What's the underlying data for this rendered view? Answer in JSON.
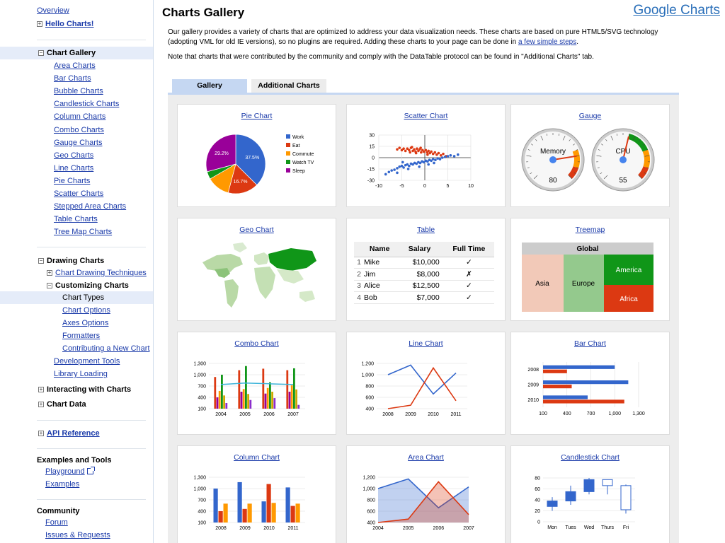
{
  "brand": "Google Charts",
  "page_title": "Charts Gallery",
  "intro": {
    "p1a": "Our gallery provides a variety of charts that are optimized to address your data visualization needs. These charts are based on pure HTML5/SVG technology",
    "p1b": "(adopting VML for old IE versions), so no plugins are required. Adding these charts to your page can be done in ",
    "p1_link": "a few simple steps",
    "p1_end": ".",
    "p2": "Note that charts that were contributed by the community and comply with the DataTable protocol can be found in \"Additional Charts\" tab."
  },
  "tabs": {
    "gallery": "Gallery",
    "additional": "Additional Charts"
  },
  "sidebar": {
    "overview": "Overview",
    "hello": "Hello Charts!",
    "chart_gallery": "Chart Gallery",
    "gallery_items": [
      "Area Charts",
      "Bar Charts",
      "Bubble Charts",
      "Candlestick Charts",
      "Column Charts",
      "Combo Charts",
      "Gauge Charts",
      "Geo Charts",
      "Line Charts",
      "Pie Charts",
      "Scatter Charts",
      "Stepped Area Charts",
      "Table Charts",
      "Tree Map Charts"
    ],
    "drawing_charts": "Drawing Charts",
    "chart_drawing_techniques": "Chart Drawing Techniques",
    "customizing_charts": "Customizing Charts",
    "customizing_items": [
      "Chart Types",
      "Chart Options",
      "Axes Options",
      "Formatters",
      "Contributing a New Chart"
    ],
    "development_tools": "Development Tools",
    "library_loading": "Library Loading",
    "interacting": "Interacting with Charts",
    "chart_data": "Chart Data",
    "api_reference": "API Reference",
    "examples_tools": "Examples and Tools",
    "playground": "Playground",
    "examples": "Examples",
    "community": "Community",
    "forum": "Forum",
    "issues": "Issues & Requests"
  },
  "cards": {
    "pie": "Pie Chart",
    "scatter": "Scatter Chart",
    "gauge": "Gauge",
    "geo": "Geo Chart",
    "table": "Table",
    "treemap": "Treemap",
    "combo": "Combo Chart",
    "line": "Line Chart",
    "bar": "Bar Chart",
    "column": "Column Chart",
    "area": "Area Chart",
    "candlestick": "Candlestick Chart"
  },
  "colors": {
    "blue": "#3366cc",
    "red": "#dc3912",
    "orange": "#ff9900",
    "green": "#109618",
    "purple": "#990099"
  },
  "chart_data": [
    {
      "type": "pie",
      "title": "Pie Chart",
      "categories": [
        "Work",
        "Eat",
        "Commute",
        "Watch TV",
        "Sleep"
      ],
      "values": [
        37.5,
        16.7,
        12.5,
        4.2,
        29.2
      ],
      "labels": [
        "37.5%",
        "16.7%",
        "",
        "",
        "29.2%"
      ]
    },
    {
      "type": "scatter",
      "title": "Scatter Chart",
      "x_ticks": [
        "-10",
        "-5",
        "0",
        "5",
        "10"
      ],
      "y_ticks": [
        "30",
        "15",
        "0",
        "-15",
        "-30"
      ],
      "xlim": [
        -10,
        10
      ],
      "ylim": [
        -30,
        30
      ],
      "series": [
        {
          "color": "red",
          "points": [
            [
              -6,
              11
            ],
            [
              -5.5,
              13
            ],
            [
              -5,
              10
            ],
            [
              -4.6,
              12
            ],
            [
              -4.2,
              9
            ],
            [
              -3.8,
              12
            ],
            [
              -3.4,
              10
            ],
            [
              -3,
              13
            ],
            [
              -2.6,
              9
            ],
            [
              -2.3,
              11
            ],
            [
              -2,
              8
            ],
            [
              -1.7,
              12
            ],
            [
              -1.4,
              9
            ],
            [
              -1.1,
              11
            ],
            [
              -0.8,
              7
            ],
            [
              -0.5,
              10
            ],
            [
              -0.2,
              8
            ],
            [
              0.2,
              10
            ],
            [
              0.5,
              7
            ],
            [
              0.8,
              9
            ],
            [
              1.1,
              6
            ],
            [
              1.4,
              8
            ],
            [
              1.8,
              5
            ],
            [
              2.2,
              7
            ],
            [
              2.6,
              4
            ],
            [
              3,
              6
            ],
            [
              3.5,
              3
            ],
            [
              4,
              5
            ],
            [
              4.6,
              2
            ],
            [
              -3.2,
              7
            ],
            [
              -1.9,
              6
            ],
            [
              0.6,
              4
            ],
            [
              -2.8,
              14
            ],
            [
              -0.9,
              13
            ]
          ]
        },
        {
          "color": "blue",
          "points": [
            [
              -8.5,
              -22
            ],
            [
              -7.8,
              -19
            ],
            [
              -7.2,
              -17
            ],
            [
              -6.6,
              -16
            ],
            [
              -6,
              -14
            ],
            [
              -5.5,
              -12
            ],
            [
              -5,
              -11
            ],
            [
              -4.6,
              -13
            ],
            [
              -4.2,
              -10
            ],
            [
              -3.8,
              -9
            ],
            [
              -3.4,
              -11
            ],
            [
              -3,
              -8
            ],
            [
              -2.6,
              -9
            ],
            [
              -2.2,
              -7
            ],
            [
              -1.8,
              -8
            ],
            [
              -1.4,
              -6
            ],
            [
              -1,
              -7
            ],
            [
              -0.6,
              -5
            ],
            [
              -0.2,
              -6
            ],
            [
              0.2,
              -4
            ],
            [
              0.6,
              -5
            ],
            [
              1,
              -3
            ],
            [
              1.4,
              -4
            ],
            [
              1.8,
              -2
            ],
            [
              2.3,
              -3
            ],
            [
              2.8,
              -1
            ],
            [
              3.3,
              -2
            ],
            [
              3.8,
              0
            ],
            [
              4.4,
              1
            ],
            [
              5,
              2
            ],
            [
              5.6,
              3
            ],
            [
              6.4,
              2
            ],
            [
              7.2,
              4
            ],
            [
              -6,
              -20
            ],
            [
              -3.6,
              -15
            ],
            [
              -1.2,
              -12
            ],
            [
              0.8,
              -9
            ],
            [
              2,
              -7
            ],
            [
              -4.8,
              -6
            ]
          ]
        }
      ]
    },
    {
      "type": "gauge",
      "title": "Gauge",
      "gauges": [
        {
          "label": "Memory",
          "value": 80
        },
        {
          "label": "CPU",
          "value": 55
        }
      ]
    },
    {
      "type": "geo",
      "title": "Geo Chart"
    },
    {
      "type": "table",
      "title": "Table",
      "columns": [
        "Name",
        "Salary",
        "Full Time"
      ],
      "rows": [
        [
          "1",
          "Mike",
          "$10,000",
          "✓"
        ],
        [
          "2",
          "Jim",
          "$8,000",
          "✗"
        ],
        [
          "3",
          "Alice",
          "$12,500",
          "✓"
        ],
        [
          "4",
          "Bob",
          "$7,000",
          "✓"
        ]
      ]
    },
    {
      "type": "treemap",
      "title": "Treemap",
      "root": "Global",
      "children": [
        "Asia",
        "Europe",
        "America",
        "Africa"
      ]
    },
    {
      "type": "bar",
      "title": "Combo Chart",
      "subtype": "combo",
      "categories": [
        "2004",
        "2005",
        "2006",
        "2007"
      ],
      "y_ticks": [
        "1,300",
        "1,000",
        "700",
        "400",
        "100"
      ],
      "ylim": [
        100,
        1300
      ],
      "series": [
        {
          "color": "red",
          "values": [
            940,
            1120,
            1160,
            1120
          ]
        },
        {
          "color": "purple",
          "values": [
            400,
            550,
            500,
            550
          ]
        },
        {
          "color": "orange",
          "values": [
            570,
            620,
            650,
            720
          ]
        },
        {
          "color": "green",
          "values": [
            1000,
            1230,
            800,
            1170
          ]
        },
        {
          "color": "yellow",
          "values": [
            450,
            490,
            550,
            610
          ]
        },
        {
          "color": "violet",
          "values": [
            250,
            330,
            380,
            200
          ]
        }
      ],
      "average": [
        740,
        780,
        760,
        740
      ]
    },
    {
      "type": "line",
      "title": "Line Chart",
      "categories": [
        "2008",
        "2009",
        "2010",
        "2011"
      ],
      "y_ticks": [
        "1,200",
        "1,000",
        "800",
        "600",
        "400"
      ],
      "ylim": [
        400,
        1200
      ],
      "series": [
        {
          "color": "blue",
          "values": [
            1000,
            1170,
            660,
            1030
          ]
        },
        {
          "color": "red",
          "values": [
            400,
            460,
            1120,
            540
          ]
        }
      ]
    },
    {
      "type": "bar",
      "title": "Bar Chart",
      "subtype": "horizontal",
      "categories": [
        "2008",
        "2009",
        "2010"
      ],
      "x_ticks": [
        "100",
        "400",
        "700",
        "1,000",
        "1,300"
      ],
      "xlim": [
        100,
        1300
      ],
      "series": [
        {
          "color": "blue",
          "values": [
            1000,
            1170,
            660
          ]
        },
        {
          "color": "red",
          "values": [
            400,
            460,
            1120
          ]
        }
      ]
    },
    {
      "type": "bar",
      "title": "Column Chart",
      "categories": [
        "2008",
        "2009",
        "2010",
        "2011"
      ],
      "y_ticks": [
        "1,300",
        "1,000",
        "700",
        "400",
        "100"
      ],
      "ylim": [
        100,
        1300
      ],
      "series": [
        {
          "color": "blue",
          "values": [
            1000,
            1170,
            660,
            1030
          ]
        },
        {
          "color": "red",
          "values": [
            400,
            460,
            1120,
            540
          ]
        },
        {
          "color": "orange",
          "values": [
            600,
            600,
            620,
            600
          ]
        }
      ]
    },
    {
      "type": "area",
      "title": "Area Chart",
      "categories": [
        "2004",
        "2005",
        "2006",
        "2007"
      ],
      "y_ticks": [
        "1,200",
        "1,000",
        "800",
        "600",
        "400"
      ],
      "ylim": [
        400,
        1200
      ],
      "series": [
        {
          "color": "blue",
          "values": [
            1000,
            1170,
            660,
            1030
          ]
        },
        {
          "color": "red",
          "values": [
            400,
            460,
            1120,
            540
          ]
        }
      ]
    },
    {
      "type": "candlestick",
      "title": "Candlestick Chart",
      "categories": [
        "Mon",
        "Tues",
        "Wed",
        "Thurs",
        "Fri"
      ],
      "y_ticks": [
        "80",
        "60",
        "40",
        "20",
        "0"
      ],
      "ylim": [
        0,
        80
      ],
      "candles": [
        [
          20,
          28,
          38,
          45
        ],
        [
          31,
          38,
          55,
          66
        ],
        [
          50,
          55,
          77,
          80
        ],
        [
          77,
          77,
          66,
          50
        ],
        [
          68,
          66,
          22,
          15
        ]
      ]
    }
  ]
}
